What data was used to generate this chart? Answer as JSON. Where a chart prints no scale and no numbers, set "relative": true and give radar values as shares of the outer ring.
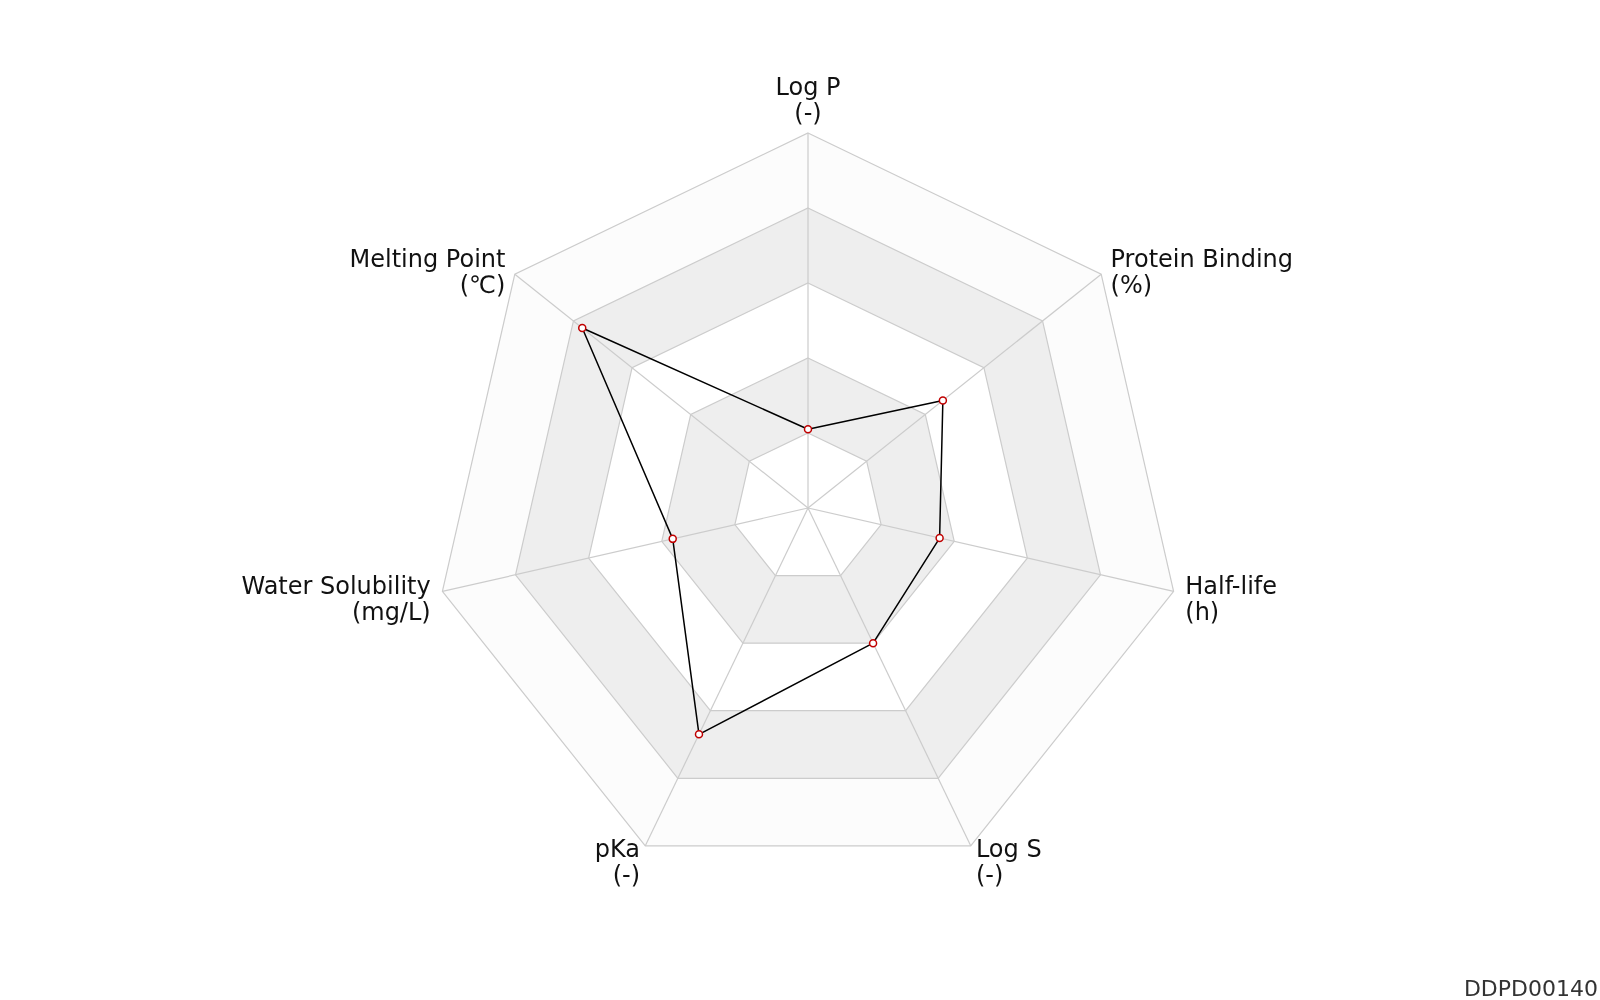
{
  "chart_data": {
    "type": "radar",
    "relative": true,
    "marker": "circle",
    "categories": [
      "Log P\n(-)",
      "Protein Binding\n(%)",
      "Half-life\n(h)",
      "Log S\n(-)",
      "pKa\n(-)",
      "Water Solubility\n(mg/L)",
      "Melting Point\n(℃)"
    ],
    "series": [
      {
        "color": "#000000",
        "values": [
          0.21,
          0.46,
          0.36,
          0.4,
          0.67,
          0.37,
          0.77
        ]
      }
    ],
    "annotations": [
      "DDPD00140"
    ]
  }
}
